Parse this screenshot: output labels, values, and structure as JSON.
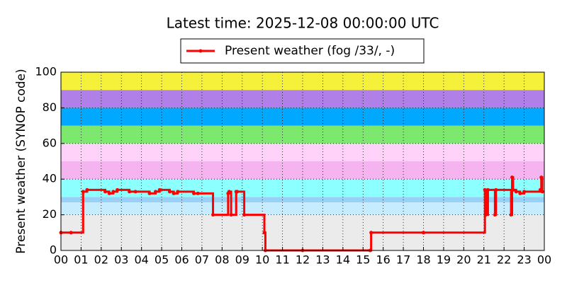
{
  "chart_data": {
    "type": "line",
    "title": "Latest time: 2025-12-08 00:00:00 UTC",
    "y_label": "Present weather (SYNOP code)",
    "xlim": [
      0,
      24
    ],
    "ylim": [
      0,
      100
    ],
    "xticks": [
      {
        "value": 0,
        "label": "00"
      },
      {
        "value": 1,
        "label": "01"
      },
      {
        "value": 2,
        "label": "02"
      },
      {
        "value": 3,
        "label": "03"
      },
      {
        "value": 4,
        "label": "04"
      },
      {
        "value": 5,
        "label": "05"
      },
      {
        "value": 6,
        "label": "06"
      },
      {
        "value": 7,
        "label": "07"
      },
      {
        "value": 8,
        "label": "08"
      },
      {
        "value": 9,
        "label": "09"
      },
      10,
      11,
      12,
      13,
      14,
      15,
      16,
      17,
      18,
      19,
      20,
      21,
      22,
      23,
      {
        "value": 24,
        "label": "00"
      }
    ],
    "yticks": [
      0,
      20,
      40,
      60,
      80,
      100
    ],
    "grid": true,
    "step": "post",
    "bands": [
      {
        "from": 0,
        "to": 20,
        "color": "#ebebeb"
      },
      {
        "from": 20,
        "to": 27,
        "color": "#c6ecff"
      },
      {
        "from": 27,
        "to": 30,
        "color": "#9ad0f5"
      },
      {
        "from": 30,
        "to": 40,
        "color": "#8cffff"
      },
      {
        "from": 40,
        "to": 50,
        "color": "#f5b4f0"
      },
      {
        "from": 50,
        "to": 60,
        "color": "#ffd2fa"
      },
      {
        "from": 60,
        "to": 70,
        "color": "#7ce86e"
      },
      {
        "from": 70,
        "to": 80,
        "color": "#00a8ff"
      },
      {
        "from": 80,
        "to": 90,
        "color": "#b07fe8"
      },
      {
        "from": 90,
        "to": 100,
        "color": "#f5f03a"
      }
    ],
    "series": [
      {
        "name": "Present weather (fog /33/, -)",
        "color": "#ff0000",
        "x": [
          0,
          0.5,
          1.1,
          1.3,
          2.2,
          2.4,
          2.6,
          2.8,
          3.4,
          3.7,
          4.4,
          4.7,
          4.9,
          5.4,
          5.6,
          5.8,
          6.6,
          6.8,
          7.55,
          8.3,
          8.35,
          8.45,
          8.7,
          8.75,
          9.1,
          10.1,
          10.15,
          12,
          15.35,
          15.4,
          18,
          21.05,
          21.1,
          21.2,
          21.55,
          21.6,
          22.35,
          22.4,
          22.45,
          22.6,
          22.8,
          23,
          23.8,
          23.85,
          23.9
        ],
        "values": [
          10,
          10,
          33,
          34,
          33,
          32,
          33,
          34,
          33,
          33,
          32,
          33,
          34,
          33,
          32,
          33,
          32,
          32,
          20,
          32,
          33,
          20,
          33,
          33,
          20,
          10,
          0,
          0,
          0,
          10,
          10,
          34,
          20,
          34,
          20,
          34,
          20,
          41,
          34,
          33,
          32,
          33,
          34,
          41,
          33
        ]
      }
    ],
    "legend": "top-center"
  }
}
